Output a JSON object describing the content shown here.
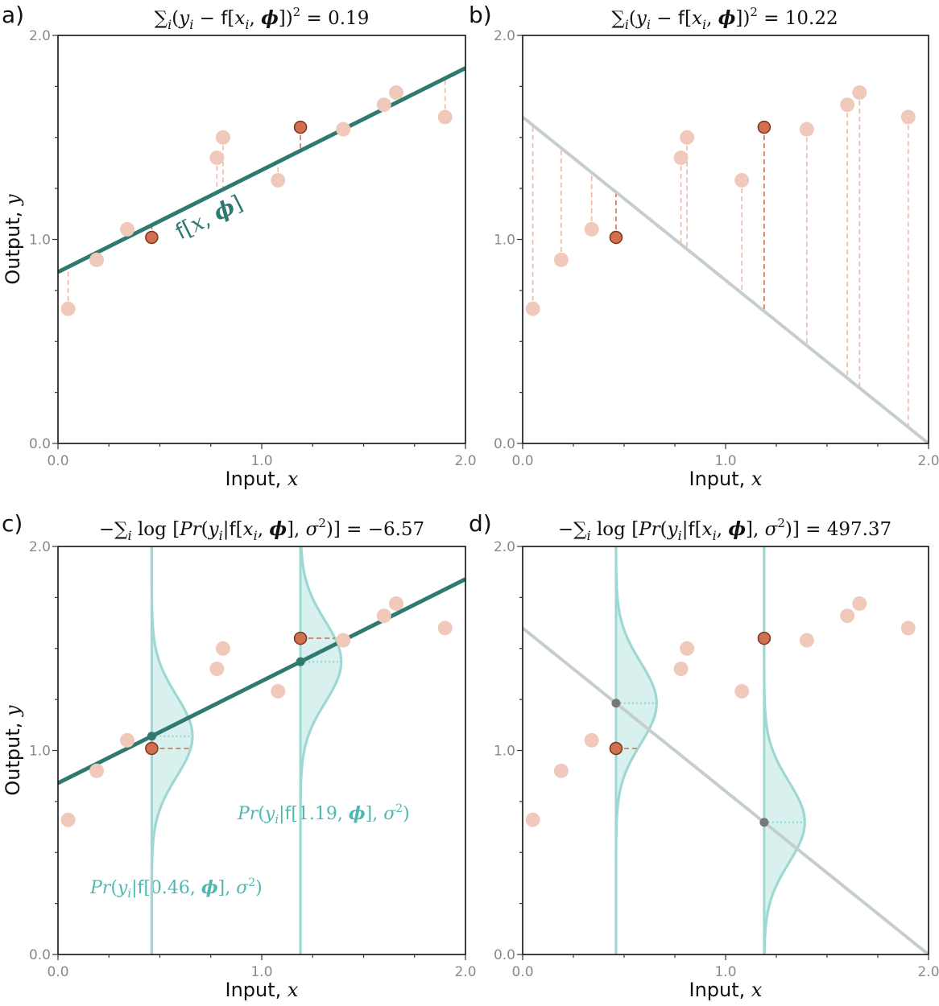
{
  "colors": {
    "good_line": "#2e7a70",
    "bad_line": "#c6cdcd",
    "point_light": "#f0c9bb",
    "point_dark": "#d0704f",
    "point_dark_stroke": "#7a3520",
    "residual_light": "#f0b8a4",
    "residual_dark": "#d0704f",
    "normal_curve": "#9ed8d3",
    "normal_fill": "#d8f1ee",
    "normal_mean_dot": "#2e7a70",
    "bad_mean_dot": "#777777"
  },
  "shared": {
    "data_x": [
      0.05,
      0.19,
      0.34,
      0.46,
      0.78,
      0.81,
      1.08,
      1.19,
      1.4,
      1.6,
      1.66,
      1.9
    ],
    "data_y": [
      0.66,
      0.9,
      1.05,
      1.01,
      1.4,
      1.5,
      1.29,
      1.55,
      1.54,
      1.66,
      1.72,
      1.6
    ],
    "highlight_indices": [
      3,
      7
    ],
    "good_line": {
      "intercept": 0.84,
      "slope": 0.5
    },
    "bad_line": {
      "intercept": 1.6,
      "slope": -0.8
    },
    "sigma": 0.2
  },
  "chart_data": [
    {
      "id": "a",
      "type": "scatter",
      "panel_label": "a)",
      "title": "Σi(yi − f[xi, ϕ])² = 0.19",
      "xlabel": "Input, x",
      "ylabel": "Output, y",
      "xlim": [
        0,
        2
      ],
      "ylim": [
        0,
        2
      ],
      "xticks": [
        "0.0",
        "1.0",
        "2.0"
      ],
      "yticks": [
        "0.0",
        "1.0",
        "2.0"
      ],
      "line": "good",
      "residuals": true,
      "line_label": "f[x, ϕ]"
    },
    {
      "id": "b",
      "type": "scatter",
      "panel_label": "b)",
      "title": "Σi(yi − f[xi, ϕ])² = 10.22",
      "xlabel": "Input, x",
      "ylabel": "",
      "xlim": [
        0,
        2
      ],
      "ylim": [
        0,
        2
      ],
      "xticks": [
        "0.0",
        "1.0",
        "2.0"
      ],
      "yticks": [
        "0.0",
        "1.0",
        "2.0"
      ],
      "line": "bad",
      "residuals": true
    },
    {
      "id": "c",
      "type": "scatter",
      "panel_label": "c)",
      "title": "−Σi log[Pr(yi|f[xi, ϕ], σ²)] = −6.57",
      "xlabel": "Input, x",
      "ylabel": "Output, y",
      "xlim": [
        0,
        2
      ],
      "ylim": [
        0,
        2
      ],
      "xticks": [
        "0.0",
        "1.0",
        "2.0"
      ],
      "yticks": [
        "0.0",
        "1.0",
        "2.0"
      ],
      "line": "good",
      "normals": true,
      "annotations": [
        "Pr(yi|f[1.19, ϕ], σ²)",
        "Pr(yi|f[0.46, ϕ], σ²)"
      ]
    },
    {
      "id": "d",
      "type": "scatter",
      "panel_label": "d)",
      "title": "−Σi log[Pr(yi|f[xi, ϕ], σ²)] = 497.37",
      "xlabel": "Input, x",
      "ylabel": "",
      "xlim": [
        0,
        2
      ],
      "ylim": [
        0,
        2
      ],
      "xticks": [
        "0.0",
        "1.0",
        "2.0"
      ],
      "yticks": [
        "0.0",
        "1.0",
        "2.0"
      ],
      "line": "bad",
      "normals": true
    }
  ]
}
